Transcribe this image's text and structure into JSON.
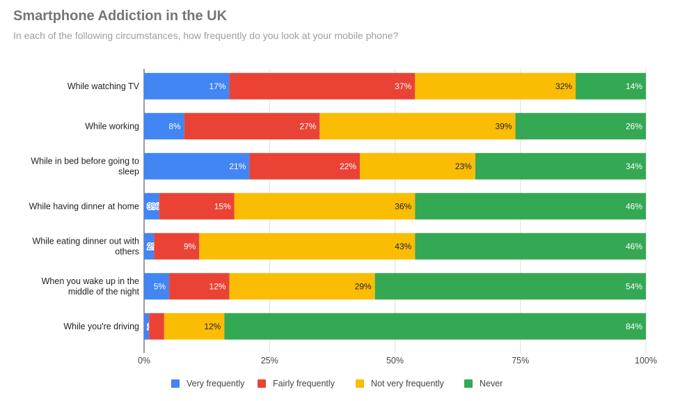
{
  "chart_data": {
    "type": "bar",
    "orientation": "horizontal",
    "stacked": "percent",
    "title": "Smartphone Addiction in the UK",
    "subtitle": "In each of the following circumstances, how frequently do you look at your mobile phone?",
    "categories": [
      [
        "While watching TV"
      ],
      [
        "While working"
      ],
      [
        "While in bed before going to",
        "sleep"
      ],
      [
        "While having dinner at home"
      ],
      [
        "While eating dinner out with",
        "others"
      ],
      [
        "When you wake up in the",
        "middle of the night"
      ],
      [
        "While you're driving"
      ]
    ],
    "series": [
      {
        "name": "Very frequently",
        "color": "#4285F4",
        "label_color": "#ffffff",
        "values": [
          17,
          8,
          21,
          3,
          2,
          5,
          1
        ]
      },
      {
        "name": "Fairly frequently",
        "color": "#EA4335",
        "label_color": "#ffffff",
        "values": [
          37,
          27,
          22,
          15,
          9,
          12,
          3
        ]
      },
      {
        "name": "Not very frequently",
        "color": "#FBBC04",
        "label_color": "#222222",
        "values": [
          32,
          39,
          23,
          36,
          43,
          29,
          12
        ]
      },
      {
        "name": "Never",
        "color": "#34A853",
        "label_color": "#ffffff",
        "values": [
          14,
          26,
          34,
          46,
          46,
          54,
          84
        ]
      }
    ],
    "xlim": [
      0,
      100
    ],
    "x_ticks": [
      "0%",
      "25%",
      "50%",
      "75%",
      "100%"
    ],
    "grid": true,
    "legend": "bottom",
    "value_suffix": "%"
  }
}
